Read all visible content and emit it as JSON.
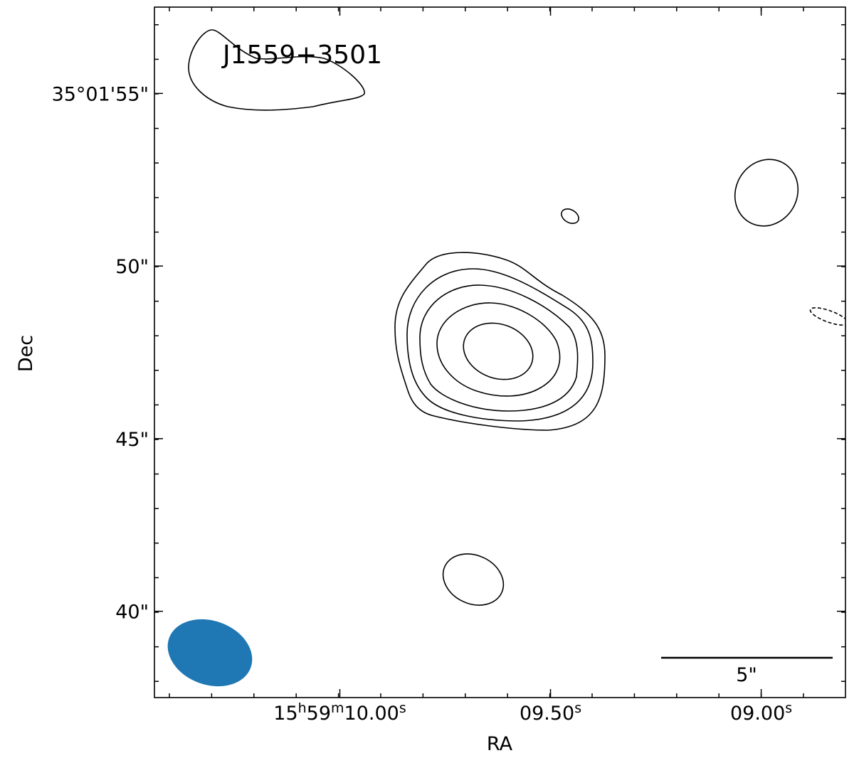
{
  "chart_data": {
    "type": "contour",
    "title": "J1559+3501",
    "x_label": "RA",
    "y_label": "Dec",
    "xlim": [
      10.44,
      8.8
    ],
    "ylim": [
      37.5,
      57.5
    ],
    "xticks": [
      {
        "value": 10.0,
        "label": "15h59m10.00s"
      },
      {
        "value": 9.5,
        "label": "09.50s"
      },
      {
        "value": 9.0,
        "label": "09.00s"
      }
    ],
    "yticks": [
      {
        "value": 55,
        "label": "35°01'55\""
      },
      {
        "value": 50,
        "label": "50\""
      },
      {
        "value": 45,
        "label": "45\""
      },
      {
        "value": 40,
        "label": "40\""
      }
    ],
    "scale_bar_label": "5\"",
    "beam_color": "#1f77b4"
  }
}
